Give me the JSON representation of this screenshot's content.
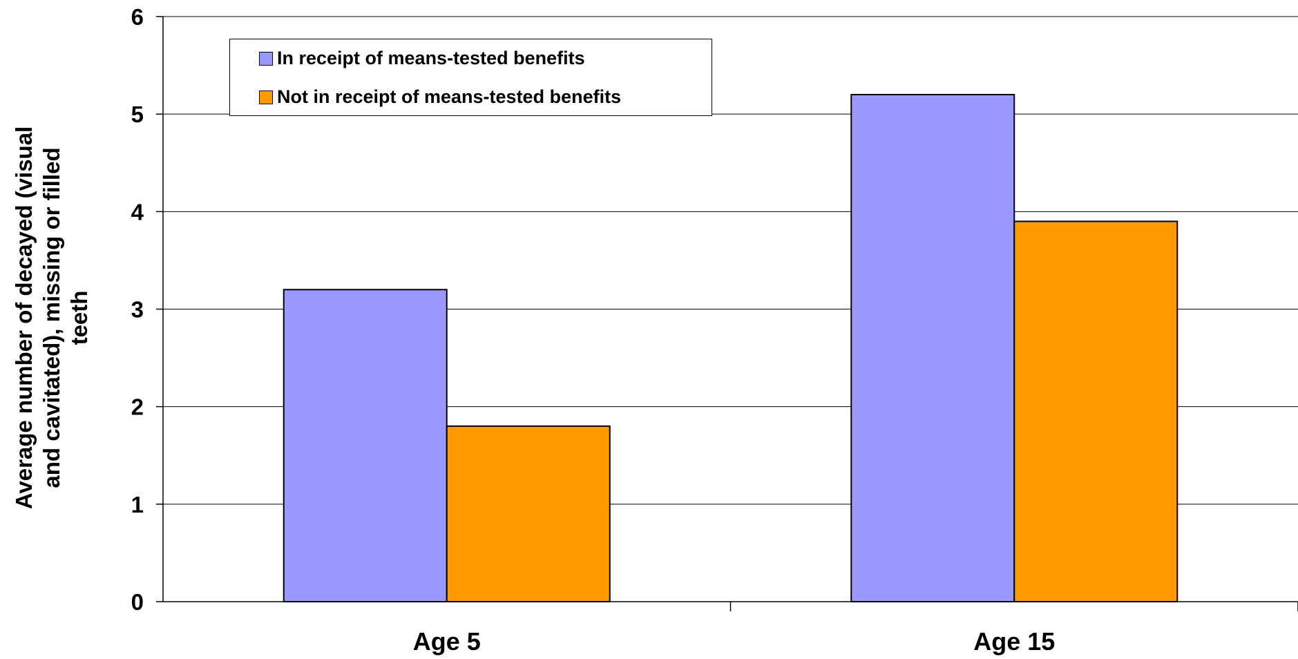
{
  "chart_data": {
    "type": "bar",
    "title": "",
    "xlabel": "",
    "ylabel": "Average number of decayed (visual and cavitated), missing or filled teeth",
    "ylabel_lines": [
      "Average number of decayed (visual",
      "and cavitated), missing or filled",
      "teeth"
    ],
    "categories": [
      "Age 5",
      "Age 15"
    ],
    "series": [
      {
        "name": "In receipt of means-tested benefits",
        "color": "#9999ff",
        "values": [
          3.2,
          5.2
        ]
      },
      {
        "name": "Not in receipt of means-tested benefits",
        "color": "#ff9900",
        "values": [
          1.8,
          3.9
        ]
      }
    ],
    "ylim": [
      0,
      6
    ],
    "yticks": [
      "0",
      "1",
      "2",
      "3",
      "4",
      "5",
      "6"
    ],
    "grid": true,
    "legend_position": "top-left"
  }
}
